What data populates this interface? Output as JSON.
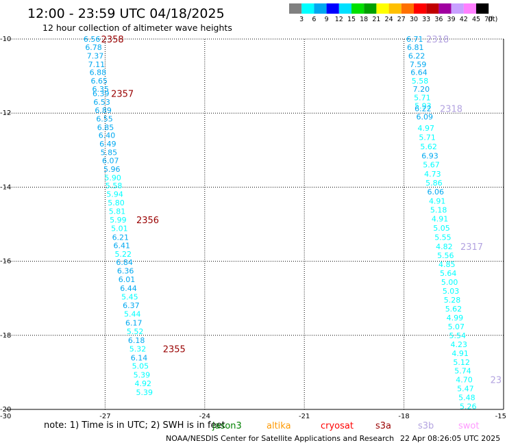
{
  "header": {
    "title": "12:00 - 23:59 UTC 04/18/2025",
    "subtitle": "12 hour collection of altimeter wave heights"
  },
  "legend": {
    "unit": "(ft)",
    "colors": [
      "#808080",
      "#00ffff",
      "#00a8f0",
      "#0000ff",
      "#00e0ff",
      "#00e000",
      "#00a000",
      "#ffff00",
      "#ffc000",
      "#ff7000",
      "#ff0000",
      "#c00000",
      "#a000a0",
      "#c8a0ff",
      "#ff80ff",
      "#000000"
    ],
    "labels": [
      "3",
      "6",
      "9",
      "12",
      "15",
      "18",
      "21",
      "24",
      "27",
      "30",
      "33",
      "36",
      "39",
      "42",
      "45",
      "70"
    ]
  },
  "footer": {
    "note": "note:  1) Time is in UTC; 2) SWH is in feet",
    "credit": "NOAA/NESDIS Center for Satellite Applications and Research",
    "generated": "22 Apr 08:26:05 UTC 2025"
  },
  "satellites": [
    {
      "name": "jason3",
      "color": "#008000"
    },
    {
      "name": "altika",
      "color": "#ff9900"
    },
    {
      "name": "cryosat",
      "color": "#ff0000"
    },
    {
      "name": "s3a",
      "color": "#990000"
    },
    {
      "name": "s3b",
      "color": "#b3a3e0"
    },
    {
      "name": "swot",
      "color": "#ff99ff"
    }
  ],
  "chart_data": {
    "type": "scatter",
    "xlim": [
      -30,
      -15
    ],
    "ylim": [
      -20,
      -10
    ],
    "xticks": [
      "-30",
      "-27",
      "-24",
      "-21",
      "-18",
      "-15"
    ],
    "yticks": [
      "-10",
      "-12",
      "-14",
      "-16",
      "-18",
      "-20"
    ],
    "grid": true,
    "series": [
      {
        "name": "track-west",
        "color": "#00a8f0",
        "points": [
          {
            "lon": -27.65,
            "lat": -10.0,
            "v": "6.56"
          },
          {
            "lon": -27.6,
            "lat": -10.22,
            "v": "6.78"
          },
          {
            "lon": -27.55,
            "lat": -10.45,
            "v": "7.37"
          },
          {
            "lon": -27.51,
            "lat": -10.68,
            "v": "7.11"
          },
          {
            "lon": -27.47,
            "lat": -10.9,
            "v": "6.88"
          },
          {
            "lon": -27.43,
            "lat": -11.13,
            "v": "6.65"
          },
          {
            "lon": -27.39,
            "lat": -11.35,
            "v": "6.35"
          },
          {
            "lon": -27.38,
            "lat": -11.47,
            "v": "6.39"
          },
          {
            "lon": -27.35,
            "lat": -11.7,
            "v": "6.53"
          },
          {
            "lon": -27.31,
            "lat": -11.92,
            "v": "6.89"
          },
          {
            "lon": -27.27,
            "lat": -12.15,
            "v": "6.55"
          },
          {
            "lon": -27.24,
            "lat": -12.38,
            "v": "6.85"
          },
          {
            "lon": -27.2,
            "lat": -12.6,
            "v": "6.40"
          },
          {
            "lon": -27.17,
            "lat": -12.83,
            "v": "6.49"
          },
          {
            "lon": -27.14,
            "lat": -13.06,
            "v": "5.85"
          },
          {
            "lon": -27.09,
            "lat": -13.28,
            "v": "6.07"
          },
          {
            "lon": -27.05,
            "lat": -13.51,
            "v": "5.96"
          },
          {
            "lon": -27.02,
            "lat": -13.74,
            "v": "5.90",
            "c": "#00ffff"
          },
          {
            "lon": -26.99,
            "lat": -13.96,
            "v": "5.58",
            "c": "#00ffff"
          },
          {
            "lon": -26.96,
            "lat": -14.19,
            "v": "5.94",
            "c": "#00ffff"
          },
          {
            "lon": -26.92,
            "lat": -14.42,
            "v": "5.80",
            "c": "#00ffff"
          },
          {
            "lon": -26.89,
            "lat": -14.65,
            "v": "5.81",
            "c": "#00ffff"
          },
          {
            "lon": -26.86,
            "lat": -14.88,
            "v": "5.99",
            "c": "#00ffff"
          },
          {
            "lon": -26.82,
            "lat": -15.11,
            "v": "5.01",
            "c": "#00ffff"
          },
          {
            "lon": -26.79,
            "lat": -15.35,
            "v": "6.21"
          },
          {
            "lon": -26.75,
            "lat": -15.57,
            "v": "6.41"
          },
          {
            "lon": -26.71,
            "lat": -15.8,
            "v": "5.22",
            "c": "#00ffff"
          },
          {
            "lon": -26.67,
            "lat": -16.03,
            "v": "6.84"
          },
          {
            "lon": -26.64,
            "lat": -16.26,
            "v": "6.36"
          },
          {
            "lon": -26.6,
            "lat": -16.49,
            "v": "6.01"
          },
          {
            "lon": -26.55,
            "lat": -16.73,
            "v": "6.44"
          },
          {
            "lon": -26.51,
            "lat": -16.96,
            "v": "5.45",
            "c": "#00ffff"
          },
          {
            "lon": -26.47,
            "lat": -17.19,
            "v": "6.37"
          },
          {
            "lon": -26.43,
            "lat": -17.42,
            "v": "5.44",
            "c": "#00ffff"
          },
          {
            "lon": -26.39,
            "lat": -17.66,
            "v": "6.17"
          },
          {
            "lon": -26.35,
            "lat": -17.89,
            "v": "5.52",
            "c": "#00ffff"
          },
          {
            "lon": -26.31,
            "lat": -18.13,
            "v": "6.18"
          },
          {
            "lon": -26.27,
            "lat": -18.36,
            "v": "5.32",
            "c": "#00ffff"
          },
          {
            "lon": -26.23,
            "lat": -18.6,
            "v": "6.14"
          },
          {
            "lon": -26.19,
            "lat": -18.83,
            "v": "5.05",
            "c": "#00ffff"
          },
          {
            "lon": -26.15,
            "lat": -19.07,
            "v": "5.39",
            "c": "#00ffff"
          },
          {
            "lon": -26.11,
            "lat": -19.3,
            "v": "4.92",
            "c": "#00ffff"
          },
          {
            "lon": -26.07,
            "lat": -19.54,
            "v": "5.39",
            "c": "#00ffff"
          }
        ],
        "passes": [
          {
            "lon": -27.12,
            "lat": -10.0,
            "v": "2358",
            "c": "#990000"
          },
          {
            "lon": -26.82,
            "lat": -11.47,
            "v": "2357",
            "c": "#990000"
          },
          {
            "lon": -26.06,
            "lat": -14.88,
            "v": "2356",
            "c": "#990000"
          },
          {
            "lon": -25.26,
            "lat": -18.36,
            "v": "2355",
            "c": "#990000"
          }
        ]
      },
      {
        "name": "track-east",
        "color": "#00a8f0",
        "points": [
          {
            "lon": -17.93,
            "lat": -10.0,
            "v": "6.71"
          },
          {
            "lon": -17.91,
            "lat": -10.22,
            "v": "6.81"
          },
          {
            "lon": -17.87,
            "lat": -10.45,
            "v": "6.22"
          },
          {
            "lon": -17.83,
            "lat": -10.68,
            "v": "7.59"
          },
          {
            "lon": -17.8,
            "lat": -10.9,
            "v": "6.64"
          },
          {
            "lon": -17.77,
            "lat": -11.13,
            "v": "5.58",
            "c": "#00ffff"
          },
          {
            "lon": -17.73,
            "lat": -11.35,
            "v": "7.20"
          },
          {
            "lon": -17.7,
            "lat": -11.58,
            "v": "5.71",
            "c": "#00ffff"
          },
          {
            "lon": -17.68,
            "lat": -11.8,
            "v": "5.93",
            "c": "#00ffff"
          },
          {
            "lon": -17.68,
            "lat": -11.88,
            "v": "6.22"
          },
          {
            "lon": -17.63,
            "lat": -12.1,
            "v": "6.09"
          },
          {
            "lon": -17.59,
            "lat": -12.4,
            "v": "4.97",
            "c": "#00ffff"
          },
          {
            "lon": -17.55,
            "lat": -12.65,
            "v": "5.71",
            "c": "#00ffff"
          },
          {
            "lon": -17.51,
            "lat": -12.9,
            "v": "5.62",
            "c": "#00ffff"
          },
          {
            "lon": -17.47,
            "lat": -13.15,
            "v": "6.93"
          },
          {
            "lon": -17.43,
            "lat": -13.39,
            "v": "5.67",
            "c": "#00ffff"
          },
          {
            "lon": -17.39,
            "lat": -13.64,
            "v": "4.73",
            "c": "#00ffff"
          },
          {
            "lon": -17.35,
            "lat": -13.88,
            "v": "5.86",
            "c": "#00ffff"
          },
          {
            "lon": -17.3,
            "lat": -14.12,
            "v": "6.06"
          },
          {
            "lon": -17.25,
            "lat": -14.37,
            "v": "4.91",
            "c": "#00ffff"
          },
          {
            "lon": -17.21,
            "lat": -14.61,
            "v": "5.18",
            "c": "#00ffff"
          },
          {
            "lon": -17.17,
            "lat": -14.85,
            "v": "4.91",
            "c": "#00ffff"
          },
          {
            "lon": -17.12,
            "lat": -15.1,
            "v": "5.05",
            "c": "#00ffff"
          },
          {
            "lon": -17.08,
            "lat": -15.35,
            "v": "5.55",
            "c": "#00ffff"
          },
          {
            "lon": -17.04,
            "lat": -15.6,
            "v": "4.82",
            "c": "#00ffff"
          },
          {
            "lon": -17.0,
            "lat": -15.84,
            "v": "5.56",
            "c": "#00ffff"
          },
          {
            "lon": -16.96,
            "lat": -16.08,
            "v": "4.85",
            "c": "#00ffff"
          },
          {
            "lon": -16.92,
            "lat": -16.32,
            "v": "5.64",
            "c": "#00ffff"
          },
          {
            "lon": -16.88,
            "lat": -16.56,
            "v": "5.00",
            "c": "#00ffff"
          },
          {
            "lon": -16.84,
            "lat": -16.8,
            "v": "5.03",
            "c": "#00ffff"
          },
          {
            "lon": -16.8,
            "lat": -17.04,
            "v": "5.28",
            "c": "#00ffff"
          },
          {
            "lon": -16.76,
            "lat": -17.28,
            "v": "5.62",
            "c": "#00ffff"
          },
          {
            "lon": -16.72,
            "lat": -17.52,
            "v": "4.99",
            "c": "#00ffff"
          },
          {
            "lon": -16.68,
            "lat": -17.76,
            "v": "5.07",
            "c": "#00ffff"
          },
          {
            "lon": -16.64,
            "lat": -18.0,
            "v": "5.54",
            "c": "#00ffff"
          },
          {
            "lon": -16.6,
            "lat": -18.24,
            "v": "4.23",
            "c": "#00ffff"
          },
          {
            "lon": -16.56,
            "lat": -18.48,
            "v": "4.91",
            "c": "#00ffff"
          },
          {
            "lon": -16.52,
            "lat": -18.72,
            "v": "5.12",
            "c": "#00ffff"
          },
          {
            "lon": -16.48,
            "lat": -18.96,
            "v": "5.74",
            "c": "#00ffff"
          },
          {
            "lon": -16.44,
            "lat": -19.2,
            "v": "4.70",
            "c": "#00ffff"
          },
          {
            "lon": -16.4,
            "lat": -19.44,
            "v": "5.47",
            "c": "#00ffff"
          },
          {
            "lon": -16.36,
            "lat": -19.68,
            "v": "5.48",
            "c": "#00ffff"
          },
          {
            "lon": -16.32,
            "lat": -19.92,
            "v": "5.26",
            "c": "#00ffff"
          }
        ],
        "passes": [
          {
            "lon": -17.33,
            "lat": -10.0,
            "v": "2318",
            "c": "#b3a3e0"
          },
          {
            "lon": -16.92,
            "lat": -11.88,
            "v": "2318",
            "c": "#b3a3e0"
          },
          {
            "lon": -16.3,
            "lat": -15.6,
            "v": "2317",
            "c": "#b3a3e0"
          },
          {
            "lon": -15.4,
            "lat": -19.2,
            "v": "23",
            "c": "#b3a3e0"
          }
        ]
      }
    ]
  }
}
